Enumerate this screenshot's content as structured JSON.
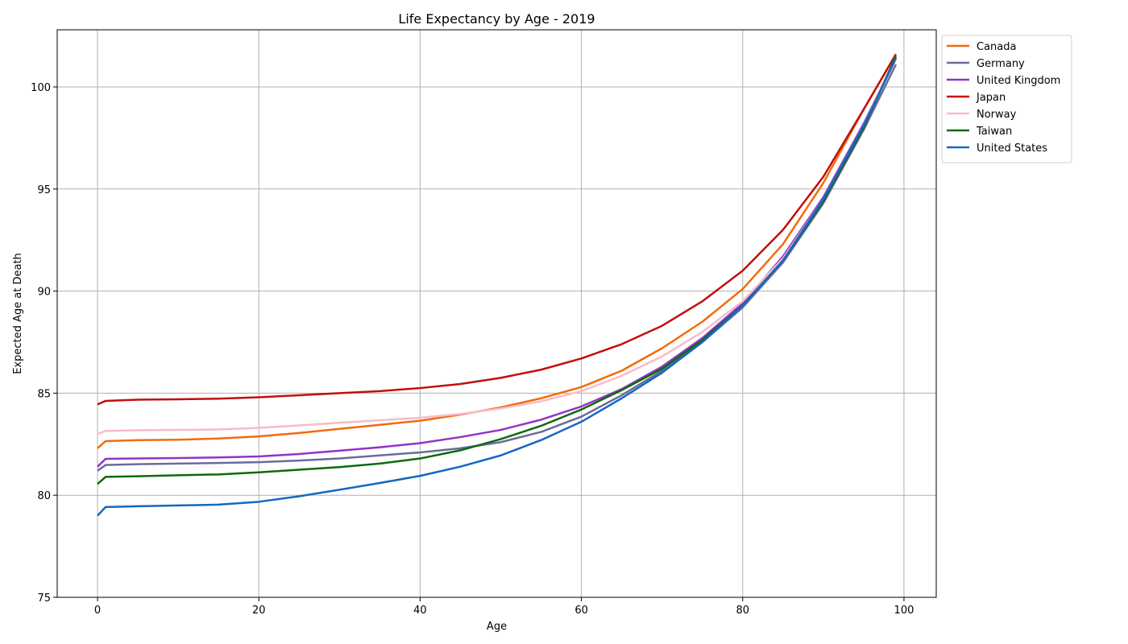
{
  "chart_data": {
    "type": "line",
    "title": "Life Expectancy by Age - 2019",
    "xlabel": "Age",
    "ylabel": "Expected Age at Death",
    "xlim": [
      -5,
      104
    ],
    "ylim": [
      75,
      102.8
    ],
    "xticks": [
      0,
      20,
      40,
      60,
      80,
      100
    ],
    "yticks": [
      75,
      80,
      85,
      90,
      95,
      100
    ],
    "grid": true,
    "legend_position": "outside-top-right",
    "x": [
      0,
      1,
      5,
      10,
      15,
      20,
      25,
      30,
      35,
      40,
      45,
      50,
      55,
      60,
      65,
      70,
      75,
      80,
      85,
      90,
      95,
      99
    ],
    "series": [
      {
        "name": "Canada",
        "color": "#f46a0c",
        "values": [
          82.3,
          82.65,
          82.7,
          82.72,
          82.78,
          82.88,
          83.05,
          83.25,
          83.45,
          83.65,
          83.95,
          84.3,
          84.75,
          85.3,
          86.1,
          87.2,
          88.5,
          90.1,
          92.3,
          95.3,
          98.9,
          101.6
        ]
      },
      {
        "name": "Germany",
        "color": "#6b6b9a",
        "values": [
          81.2,
          81.48,
          81.52,
          81.55,
          81.58,
          81.62,
          81.7,
          81.8,
          81.95,
          82.1,
          82.3,
          82.6,
          83.1,
          83.85,
          84.9,
          86.1,
          87.5,
          89.2,
          91.4,
          94.3,
          97.9,
          101.1
        ]
      },
      {
        "name": "United Kingdom",
        "color": "#9333c7",
        "values": [
          81.4,
          81.78,
          81.8,
          81.82,
          81.85,
          81.9,
          82.02,
          82.18,
          82.35,
          82.55,
          82.85,
          83.2,
          83.7,
          84.35,
          85.2,
          86.3,
          87.7,
          89.4,
          91.7,
          94.6,
          98.2,
          101.4
        ]
      },
      {
        "name": "Japan",
        "color": "#c20e0e",
        "values": [
          84.45,
          84.62,
          84.68,
          84.7,
          84.73,
          84.8,
          84.9,
          85.0,
          85.1,
          85.25,
          85.45,
          85.75,
          86.15,
          86.7,
          87.4,
          88.3,
          89.5,
          91.0,
          93.0,
          95.6,
          98.9,
          101.6
        ]
      },
      {
        "name": "Norway",
        "color": "#f7bcc8",
        "values": [
          83.0,
          83.15,
          83.18,
          83.2,
          83.22,
          83.3,
          83.42,
          83.55,
          83.67,
          83.8,
          83.98,
          84.25,
          84.6,
          85.1,
          85.85,
          86.8,
          88.0,
          89.5,
          91.6,
          94.5,
          98.1,
          101.5
        ]
      },
      {
        "name": "Taiwan",
        "color": "#0b6b0b",
        "values": [
          80.55,
          80.9,
          80.93,
          80.98,
          81.02,
          81.12,
          81.25,
          81.38,
          81.55,
          81.8,
          82.2,
          82.75,
          83.4,
          84.2,
          85.15,
          86.2,
          87.6,
          89.3,
          91.5,
          94.4,
          98.0,
          101.5
        ]
      },
      {
        "name": "United States",
        "color": "#1468c2",
        "values": [
          79.0,
          79.42,
          79.46,
          79.5,
          79.54,
          79.68,
          79.95,
          80.27,
          80.6,
          80.95,
          81.4,
          81.95,
          82.7,
          83.6,
          84.75,
          86.0,
          87.5,
          89.3,
          91.5,
          94.5,
          98.1,
          101.4
        ]
      }
    ]
  }
}
